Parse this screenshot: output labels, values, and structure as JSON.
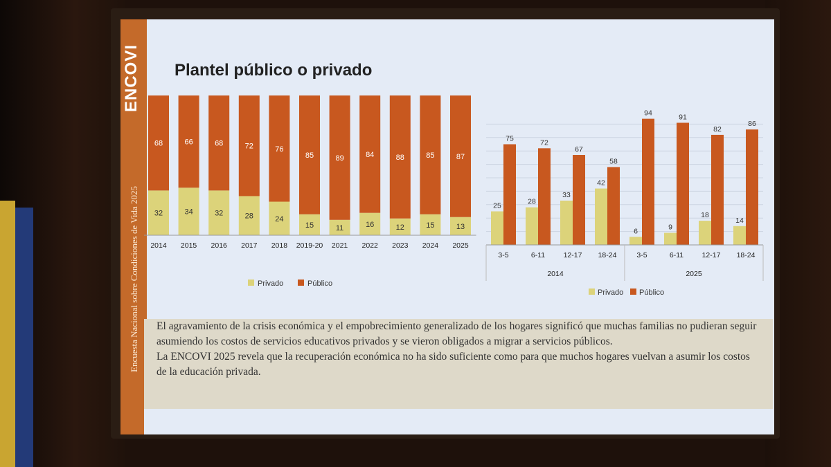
{
  "slide": {
    "title": "Plantel público o privado",
    "logo": "ENCOVI",
    "side_text": "Encuesta Nacional sobre Condiciones de Vida 2025",
    "caption_1": "El agravamiento de la crisis económica y el empobrecimiento generalizado de los hogares significó que muchas familias no pudieran seguir asumiendo los costos de servicios educativos privados y se vieron obligados a migrar a servicios públicos.",
    "caption_2": "La ENCOVI 2025 revela que la recuperación económica no ha sido suficiente como para que muchos hogares vuelvan a asumir los costos de la educación privada."
  },
  "colors": {
    "privado": "#dcd37a",
    "publico": "#c8581f",
    "band": "#c46a2a"
  },
  "chart_data": [
    {
      "type": "bar",
      "stacked": true,
      "categories": [
        "2014",
        "2015",
        "2016",
        "2017",
        "2018",
        "2019-20",
        "2021",
        "2022",
        "2023",
        "2024",
        "2025"
      ],
      "series": [
        {
          "name": "Privado",
          "values": [
            32,
            34,
            32,
            28,
            24,
            15,
            11,
            16,
            12,
            15,
            13
          ]
        },
        {
          "name": "Público",
          "values": [
            68,
            66,
            68,
            72,
            76,
            85,
            89,
            84,
            88,
            85,
            87
          ]
        }
      ],
      "ylim": [
        0,
        100
      ],
      "grid": false,
      "legend": "bottom"
    },
    {
      "type": "bar",
      "stacked": false,
      "groups": [
        {
          "label": "2014",
          "categories": [
            "3-5",
            "6-11",
            "12-17",
            "18-24"
          ]
        },
        {
          "label": "2025",
          "categories": [
            "3-5",
            "6-11",
            "12-17",
            "18-24"
          ]
        }
      ],
      "series": [
        {
          "name": "Privado",
          "values": [
            25,
            28,
            33,
            42,
            6,
            9,
            18,
            14
          ]
        },
        {
          "name": "Público",
          "values": [
            75,
            72,
            67,
            58,
            94,
            91,
            82,
            86
          ]
        }
      ],
      "ylim": [
        0,
        100
      ],
      "grid": true,
      "legend": "bottom"
    }
  ]
}
